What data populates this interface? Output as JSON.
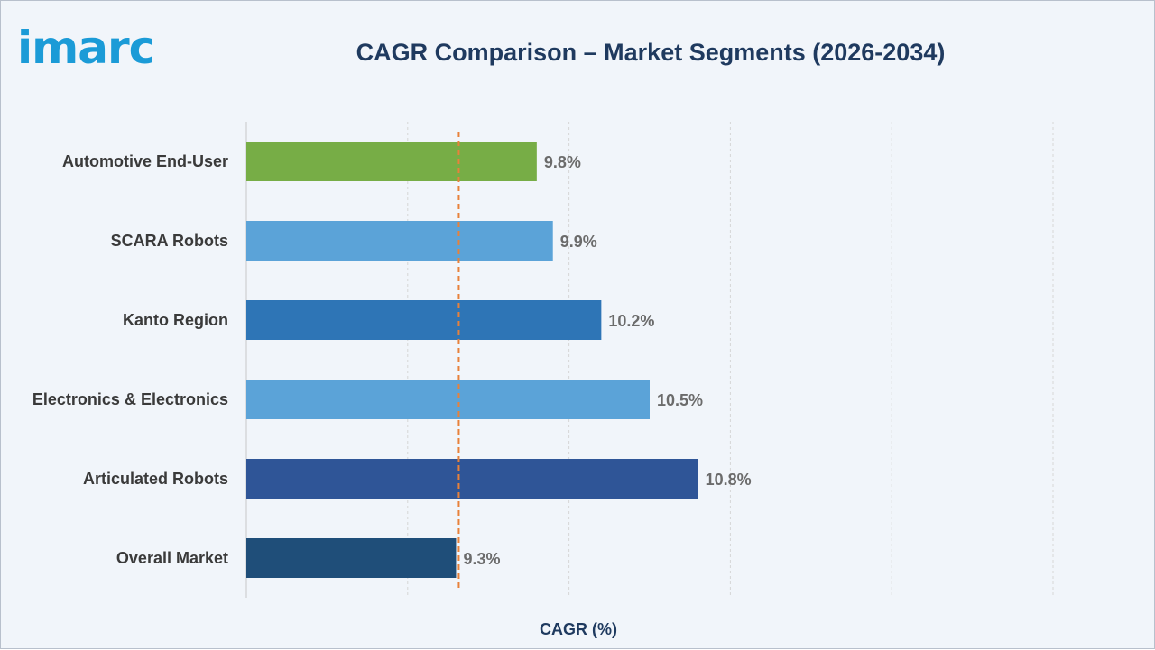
{
  "logo": {
    "text": "imarc"
  },
  "chart_data": {
    "type": "bar",
    "orientation": "horizontal",
    "title": "CAGR Comparison – Market Segments (2026-2034)",
    "xlabel": "CAGR (%)",
    "ylabel": "",
    "xlim": [
      8.0,
      13.0
    ],
    "grid": true,
    "reference_line": {
      "value": 9.3,
      "style": "dashed",
      "color": "#e8813a"
    },
    "categories": [
      "Automotive End-User",
      "SCARA Robots",
      "Kanto Region",
      "Electronics & Electronics",
      "Articulated Robots",
      "Overall Market"
    ],
    "values": [
      9.8,
      9.9,
      10.2,
      10.5,
      10.8,
      9.3
    ],
    "value_labels": [
      "9.8%",
      "9.9%",
      "10.2%",
      "10.5%",
      "10.8%",
      "9.3%"
    ],
    "colors": [
      "#77ad46",
      "#5ba3d8",
      "#2e75b6",
      "#5ba3d8",
      "#2f5597",
      "#1f4e79"
    ]
  }
}
